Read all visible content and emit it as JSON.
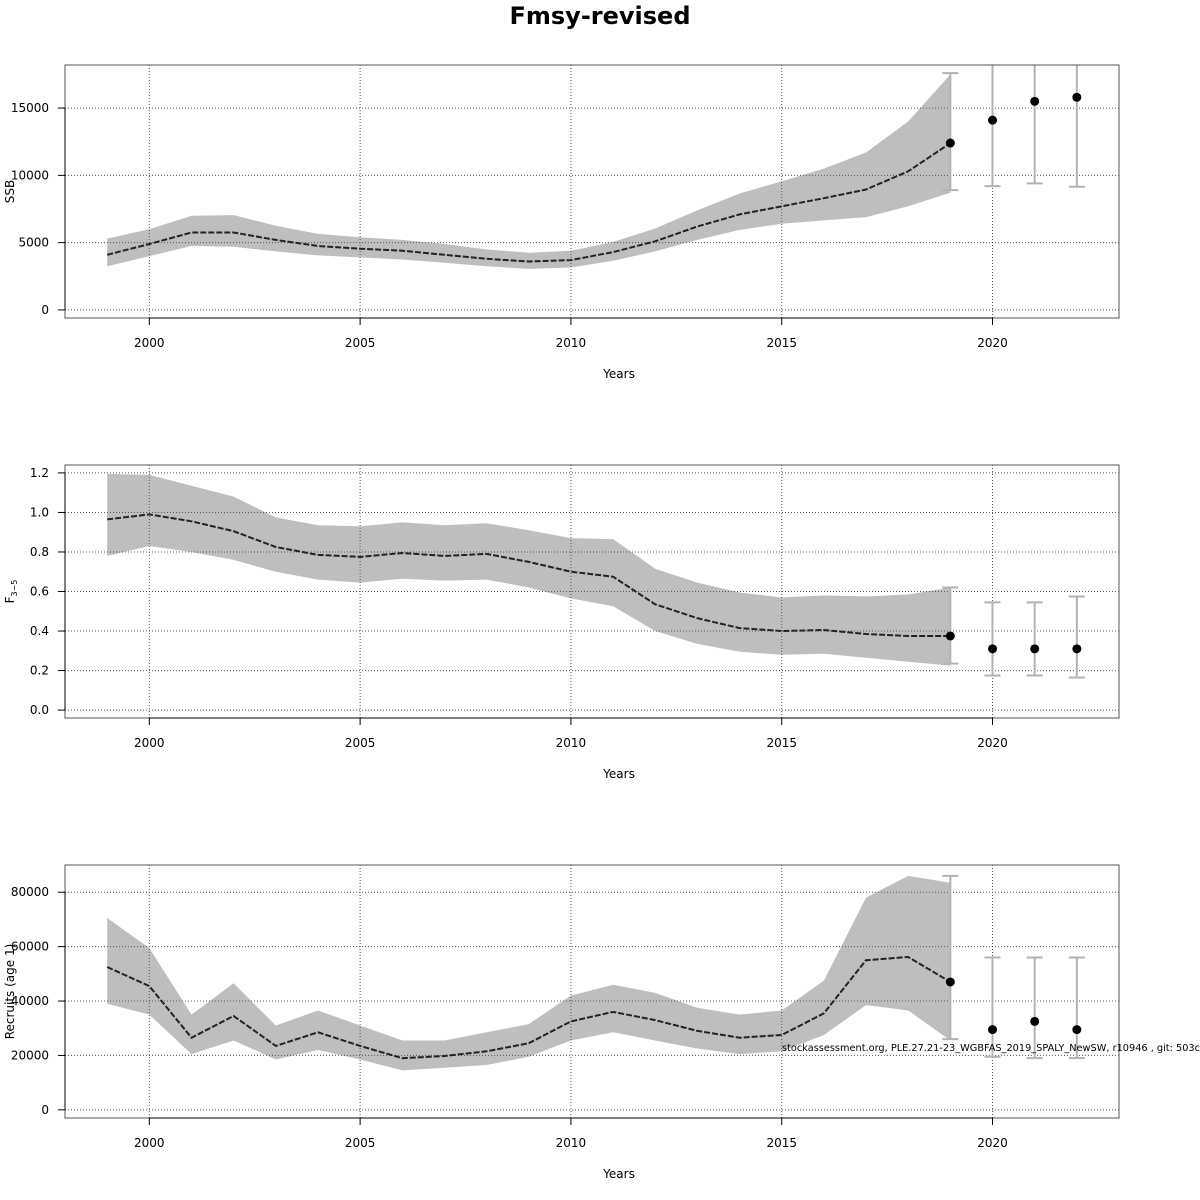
{
  "title": "Fmsy-revised",
  "watermark": "stockassessment.org, PLE.27.21-23_WGBFAS_2019_SPALY_NewSW, r10946 , git: 503c",
  "colors": {
    "band": "#bebebe",
    "line": "#222222",
    "point": "#000000",
    "errorbar": "#b3b3b3",
    "grid": "#555555"
  },
  "chart_data": [
    {
      "type": "line",
      "xlabel": "Years",
      "ylabel": "SSB",
      "xlim": [
        1998,
        2023
      ],
      "ylim": [
        -600,
        18200
      ],
      "xticks": [
        2000,
        2005,
        2010,
        2015,
        2020
      ],
      "yticks": [
        0,
        5000,
        10000,
        15000
      ],
      "grid": true,
      "x": [
        1999,
        2000,
        2001,
        2002,
        2003,
        2004,
        2005,
        2006,
        2007,
        2008,
        2009,
        2010,
        2011,
        2012,
        2013,
        2014,
        2015,
        2016,
        2017,
        2018,
        2019
      ],
      "estimate": [
        4100,
        4900,
        5750,
        5750,
        5200,
        4750,
        4550,
        4400,
        4100,
        3800,
        3600,
        3700,
        4300,
        5100,
        6200,
        7100,
        7700,
        8300,
        8950,
        10300,
        12400
      ],
      "lower": [
        3250,
        4000,
        4750,
        4700,
        4350,
        4050,
        3900,
        3750,
        3500,
        3250,
        3050,
        3150,
        3650,
        4350,
        5200,
        5950,
        6400,
        6650,
        6900,
        7700,
        8700
      ],
      "upper": [
        5300,
        6000,
        7000,
        7050,
        6250,
        5650,
        5400,
        5200,
        4900,
        4500,
        4250,
        4400,
        5050,
        6050,
        7400,
        8650,
        9550,
        10500,
        11700,
        14000,
        17500
      ],
      "forecast": {
        "x": [
          2019,
          2020,
          2021,
          2022
        ],
        "estimate": [
          12400,
          14100,
          15500,
          15800
        ],
        "lower": [
          8900,
          9200,
          9400,
          9150
        ],
        "upper": [
          17600,
          19000,
          19500,
          19800
        ]
      }
    },
    {
      "type": "line",
      "xlabel": "Years",
      "ylabel": "F",
      "ylabel_sub": "3−5",
      "xlim": [
        1998,
        2023
      ],
      "ylim": [
        -0.04,
        1.24
      ],
      "xticks": [
        2000,
        2005,
        2010,
        2015,
        2020
      ],
      "yticks": [
        "0.0",
        "0.2",
        "0.4",
        "0.6",
        "0.8",
        "1.0",
        "1.2"
      ],
      "grid": true,
      "x": [
        1999,
        2000,
        2001,
        2002,
        2003,
        2004,
        2005,
        2006,
        2007,
        2008,
        2009,
        2010,
        2011,
        2012,
        2013,
        2014,
        2015,
        2016,
        2017,
        2018,
        2019
      ],
      "estimate": [
        0.965,
        0.99,
        0.955,
        0.905,
        0.825,
        0.785,
        0.775,
        0.795,
        0.78,
        0.79,
        0.75,
        0.7,
        0.675,
        0.535,
        0.465,
        0.415,
        0.4,
        0.405,
        0.385,
        0.375,
        0.375
      ],
      "lower": [
        0.78,
        0.83,
        0.8,
        0.76,
        0.7,
        0.66,
        0.645,
        0.665,
        0.655,
        0.66,
        0.62,
        0.565,
        0.525,
        0.4,
        0.335,
        0.295,
        0.28,
        0.285,
        0.265,
        0.245,
        0.225
      ],
      "upper": [
        1.195,
        1.19,
        1.135,
        1.08,
        0.975,
        0.935,
        0.93,
        0.95,
        0.935,
        0.945,
        0.91,
        0.87,
        0.865,
        0.715,
        0.645,
        0.595,
        0.57,
        0.58,
        0.575,
        0.585,
        0.62
      ],
      "forecast": {
        "x": [
          2019,
          2020,
          2021,
          2022
        ],
        "estimate": [
          0.375,
          0.31,
          0.31,
          0.31
        ],
        "lower": [
          0.235,
          0.175,
          0.175,
          0.165
        ],
        "upper": [
          0.62,
          0.545,
          0.545,
          0.575
        ]
      }
    },
    {
      "type": "line",
      "xlabel": "Years",
      "ylabel": "Recruits (age 1)",
      "xlim": [
        1998,
        2023
      ],
      "ylim": [
        -3000,
        90000
      ],
      "xticks": [
        2000,
        2005,
        2010,
        2015,
        2020
      ],
      "yticks": [
        0,
        20000,
        40000,
        60000,
        80000
      ],
      "grid": true,
      "x": [
        1999,
        2000,
        2001,
        2002,
        2003,
        2004,
        2005,
        2006,
        2007,
        2008,
        2009,
        2010,
        2011,
        2012,
        2013,
        2014,
        2015,
        2016,
        2017,
        2018,
        2019
      ],
      "estimate": [
        52500,
        45500,
        26500,
        34500,
        23500,
        28500,
        23500,
        19000,
        19800,
        21500,
        24500,
        32500,
        36000,
        33000,
        29000,
        26500,
        27500,
        35500,
        55000,
        56200,
        47000
      ],
      "lower": [
        39000,
        35000,
        20500,
        25500,
        18500,
        22000,
        18500,
        14500,
        15500,
        16500,
        19500,
        25500,
        28500,
        25500,
        22500,
        20500,
        21500,
        27500,
        38500,
        36500,
        25500
      ],
      "upper": [
        70500,
        59500,
        35000,
        46500,
        31000,
        36500,
        31000,
        25500,
        25500,
        28500,
        31500,
        42000,
        46000,
        43000,
        37500,
        35000,
        36500,
        47500,
        78000,
        86000,
        83500
      ],
      "forecast": {
        "x": [
          2019,
          2020,
          2021,
          2022
        ],
        "estimate": [
          47000,
          29500,
          32500,
          29500
        ],
        "lower": [
          26000,
          19500,
          19000,
          19000
        ],
        "upper": [
          86000,
          56000,
          56000,
          56000
        ]
      }
    }
  ]
}
